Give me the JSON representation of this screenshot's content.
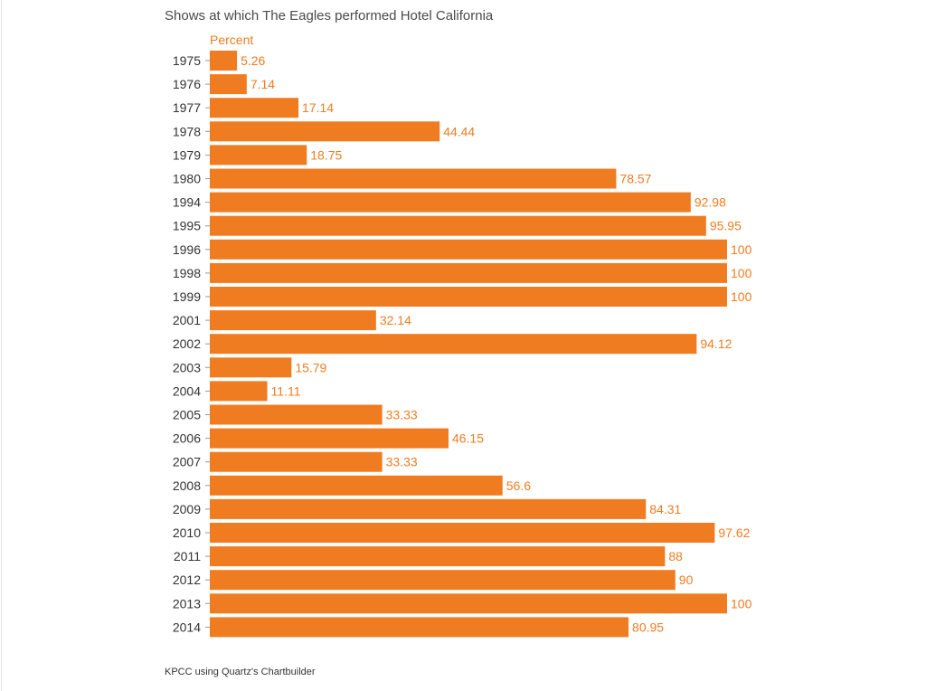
{
  "title": "Shows at which The Eagles performed Hotel California",
  "source": "KPCC using Quartz's Chartbuilder",
  "colors": {
    "bar": "#f07c22",
    "label": "#f07c22",
    "tick_text": "#333333",
    "tick_mark": "#999999"
  },
  "chart_data": {
    "type": "bar",
    "orientation": "horizontal",
    "title": "Shows at which The Eagles performed Hotel California",
    "unit_label": "Percent",
    "categories": [
      "1975",
      "1976",
      "1977",
      "1978",
      "1979",
      "1980",
      "1994",
      "1995",
      "1996",
      "1998",
      "1999",
      "2001",
      "2002",
      "2003",
      "2004",
      "2005",
      "2006",
      "2007",
      "2008",
      "2009",
      "2010",
      "2011",
      "2012",
      "2013",
      "2014"
    ],
    "values": [
      5.26,
      7.14,
      17.14,
      44.44,
      18.75,
      78.57,
      92.98,
      95.95,
      100,
      100,
      100,
      32.14,
      94.12,
      15.79,
      11.11,
      33.33,
      46.15,
      33.33,
      56.6,
      84.31,
      97.62,
      88,
      90,
      100,
      80.95
    ],
    "xlim": [
      0,
      100
    ],
    "grid": false,
    "legend": "none",
    "data_labels": true
  }
}
